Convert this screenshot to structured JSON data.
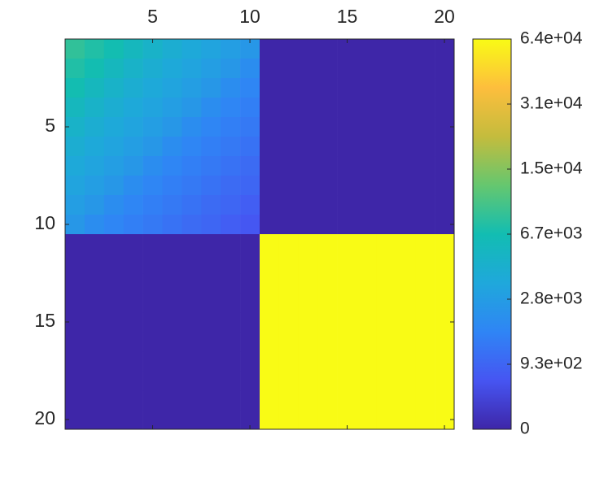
{
  "chart_data": {
    "type": "heatmap",
    "values": [
      [
        9000,
        7800,
        6800,
        5900,
        5100,
        4500,
        3900,
        3400,
        2900,
        2600,
        0,
        0,
        0,
        0,
        0,
        0,
        0,
        0,
        0,
        0
      ],
      [
        7800,
        6800,
        5900,
        5100,
        4500,
        3900,
        3400,
        2900,
        2600,
        2200,
        0,
        0,
        0,
        0,
        0,
        0,
        0,
        0,
        0,
        0
      ],
      [
        6800,
        5900,
        5100,
        4500,
        3900,
        3400,
        2900,
        2600,
        2200,
        1900,
        0,
        0,
        0,
        0,
        0,
        0,
        0,
        0,
        0,
        0
      ],
      [
        5900,
        5100,
        4500,
        3900,
        3400,
        2900,
        2600,
        2200,
        1900,
        1700,
        0,
        0,
        0,
        0,
        0,
        0,
        0,
        0,
        0,
        0
      ],
      [
        5100,
        4500,
        3900,
        3400,
        2900,
        2600,
        2200,
        1900,
        1700,
        1500,
        0,
        0,
        0,
        0,
        0,
        0,
        0,
        0,
        0,
        0
      ],
      [
        4500,
        3900,
        3400,
        2900,
        2600,
        2200,
        1900,
        1700,
        1500,
        1300,
        0,
        0,
        0,
        0,
        0,
        0,
        0,
        0,
        0,
        0
      ],
      [
        3900,
        3400,
        2900,
        2600,
        2200,
        1900,
        1700,
        1500,
        1300,
        1100,
        0,
        0,
        0,
        0,
        0,
        0,
        0,
        0,
        0,
        0
      ],
      [
        3400,
        2900,
        2600,
        2200,
        1900,
        1700,
        1500,
        1300,
        1100,
        960,
        0,
        0,
        0,
        0,
        0,
        0,
        0,
        0,
        0,
        0
      ],
      [
        2900,
        2600,
        2200,
        1900,
        1700,
        1500,
        1300,
        1100,
        960,
        830,
        0,
        0,
        0,
        0,
        0,
        0,
        0,
        0,
        0,
        0
      ],
      [
        2600,
        2200,
        1900,
        1700,
        1500,
        1300,
        1100,
        960,
        830,
        720,
        0,
        0,
        0,
        0,
        0,
        0,
        0,
        0,
        0,
        0
      ],
      [
        0,
        0,
        0,
        0,
        0,
        0,
        0,
        0,
        0,
        0,
        64000,
        64000,
        64000,
        64000,
        64000,
        64000,
        64000,
        64000,
        64000,
        64000
      ],
      [
        0,
        0,
        0,
        0,
        0,
        0,
        0,
        0,
        0,
        0,
        64000,
        64000,
        64000,
        64000,
        64000,
        64000,
        64000,
        64000,
        64000,
        64000
      ],
      [
        0,
        0,
        0,
        0,
        0,
        0,
        0,
        0,
        0,
        0,
        64000,
        64000,
        64000,
        64000,
        64000,
        64000,
        64000,
        64000,
        64000,
        64000
      ],
      [
        0,
        0,
        0,
        0,
        0,
        0,
        0,
        0,
        0,
        0,
        64000,
        64000,
        64000,
        64000,
        64000,
        64000,
        64000,
        64000,
        64000,
        64000
      ],
      [
        0,
        0,
        0,
        0,
        0,
        0,
        0,
        0,
        0,
        0,
        64000,
        64000,
        64000,
        64000,
        64000,
        64000,
        64000,
        64000,
        64000,
        64000
      ],
      [
        0,
        0,
        0,
        0,
        0,
        0,
        0,
        0,
        0,
        0,
        64000,
        64000,
        64000,
        64000,
        64000,
        64000,
        64000,
        64000,
        64000,
        64000
      ],
      [
        0,
        0,
        0,
        0,
        0,
        0,
        0,
        0,
        0,
        0,
        64000,
        64000,
        64000,
        64000,
        64000,
        64000,
        64000,
        64000,
        64000,
        64000
      ],
      [
        0,
        0,
        0,
        0,
        0,
        0,
        0,
        0,
        0,
        0,
        64000,
        64000,
        64000,
        64000,
        64000,
        64000,
        64000,
        64000,
        64000,
        64000
      ],
      [
        0,
        0,
        0,
        0,
        0,
        0,
        0,
        0,
        0,
        0,
        64000,
        64000,
        64000,
        64000,
        64000,
        64000,
        64000,
        64000,
        64000,
        64000
      ],
      [
        0,
        0,
        0,
        0,
        0,
        0,
        0,
        0,
        0,
        0,
        64000,
        64000,
        64000,
        64000,
        64000,
        64000,
        64000,
        64000,
        64000,
        64000
      ]
    ],
    "xlim": [
      0.5,
      20.5
    ],
    "xticks": [
      5,
      10,
      15,
      20
    ],
    "ylim": [
      0.5,
      20.5
    ],
    "yticks": [
      5,
      10,
      15,
      20
    ],
    "colormap": [
      "#3e26a8",
      "#4655f2",
      "#2f85f5",
      "#1fa8db",
      "#12bdb2",
      "#65c76f",
      "#c4bc3d",
      "#fdbe3d",
      "#f9fb15"
    ],
    "colorbar_ticks": [
      0,
      {
        "value": 930,
        "label": "9.3e+02"
      },
      {
        "value": 2800,
        "label": "2.8e+03"
      },
      {
        "value": 6700,
        "label": "6.7e+03"
      },
      {
        "value": 15000,
        "label": "1.5e+04"
      },
      {
        "value": 31000,
        "label": "3.1e+04"
      },
      {
        "value": 64000,
        "label": "6.4e+04"
      }
    ]
  }
}
